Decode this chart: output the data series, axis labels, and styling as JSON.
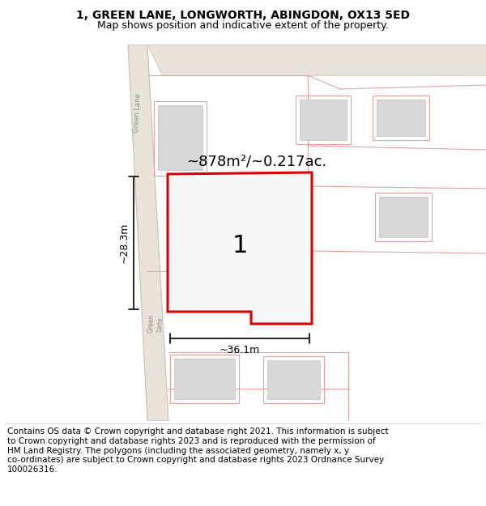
{
  "title_line1": "1, GREEN LANE, LONGWORTH, ABINGDON, OX13 5ED",
  "title_line2": "Map shows position and indicative extent of the property.",
  "area_label": "~878m²/~0.217ac.",
  "label_number": "1",
  "dim_height": "~28.3m",
  "dim_width": "~36.1m",
  "copyright_text": "Contains OS data © Crown copyright and database right 2021. This information is subject\nto Crown copyright and database rights 2023 and is reproduced with the permission of\nHM Land Registry. The polygons (including the associated geometry, namely x, y\nco-ordinates) are subject to Crown copyright and database rights 2023 Ordnance Survey\n100026316.",
  "bg_color": "#ffffff",
  "red_outline": "#dd0000",
  "pink_line": "#e8a0a0",
  "title_fontsize": 10,
  "subtitle_fontsize": 9,
  "copyright_fontsize": 7.5
}
